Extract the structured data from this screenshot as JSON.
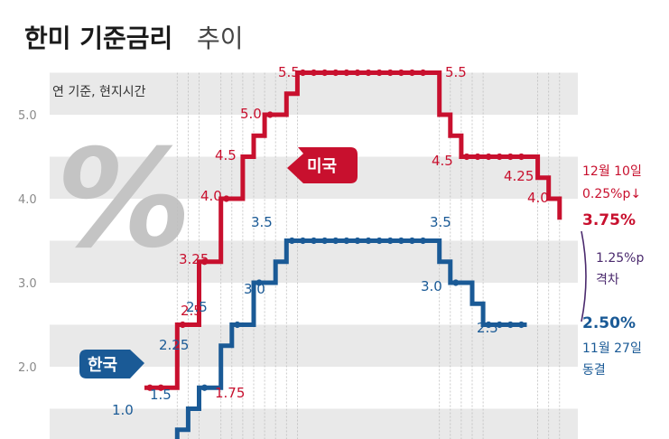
{
  "title": {
    "main": "한미 기준금리",
    "sub": "추이"
  },
  "note": "연 기준, 현지시간",
  "percent_symbol": "%",
  "colors": {
    "us": "#c8102e",
    "kr": "#1a5a96",
    "gap": "#4b2a6e",
    "band": "#e9e9e9"
  },
  "chart_data": {
    "type": "line",
    "ylim": [
      0.6,
      5.75
    ],
    "yticks": [
      "2.0",
      "3.0",
      "4.0",
      "5.0"
    ],
    "grid": true,
    "series": [
      {
        "name": "미국",
        "values": [
          1.75,
          1.75,
          1.75,
          2.5,
          2.5,
          3.25,
          3.25,
          4.0,
          4.0,
          4.5,
          4.75,
          5.0,
          5.0,
          5.25,
          5.5,
          5.5,
          5.5,
          5.5,
          5.5,
          5.5,
          5.5,
          5.5,
          5.5,
          5.5,
          5.5,
          5.5,
          5.5,
          5.0,
          4.75,
          4.5,
          4.5,
          4.5,
          4.5,
          4.5,
          4.5,
          4.5,
          4.25,
          4.0,
          3.75
        ],
        "labels": [
          "1.75",
          "2.5",
          "3.25",
          "4.0",
          "4.5",
          "5.0",
          "5.5",
          "5.5",
          "4.5",
          "4.25",
          "4.0"
        ]
      },
      {
        "name": "한국",
        "values": [
          1.0,
          1.0,
          1.0,
          1.25,
          1.5,
          1.75,
          1.75,
          2.25,
          2.5,
          2.5,
          3.0,
          3.0,
          3.25,
          3.5,
          3.5,
          3.5,
          3.5,
          3.5,
          3.5,
          3.5,
          3.5,
          3.5,
          3.5,
          3.5,
          3.5,
          3.5,
          3.5,
          3.25,
          3.0,
          3.0,
          2.75,
          2.5,
          2.5,
          2.5,
          2.5,
          2.5
        ],
        "labels": [
          "1.0",
          "1.5",
          "2.25",
          "2.5",
          "3.0",
          "3.5",
          "3.5",
          "3.0",
          "2.5"
        ]
      }
    ]
  },
  "tags": {
    "us": "미국",
    "kr": "한국"
  },
  "annotations": {
    "us_date": "12월 10일",
    "us_cut": "0.25%p↓",
    "us_rate": "3.75%",
    "gap_value": "1.25%p",
    "gap_word": "격차",
    "kr_rate": "2.50%",
    "kr_date": "11월 27일",
    "kr_status": "동결"
  }
}
